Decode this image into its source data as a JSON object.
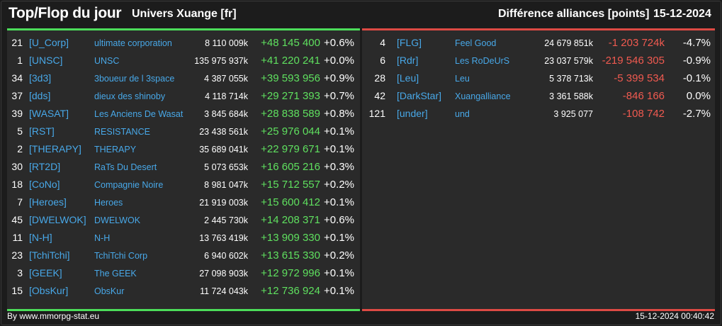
{
  "header": {
    "title": "Top/Flop du jour",
    "universe": "Univers Xuange [fr]",
    "subtitle": "Différence alliances [points]",
    "date": "15-12-2024"
  },
  "top": [
    {
      "rank": "21",
      "tag": "[U_Corp]",
      "name": "ultimate corporation",
      "points": "8 110 009k",
      "delta": "+48 145 400",
      "pct": "+0.6%"
    },
    {
      "rank": "1",
      "tag": "[UNSC]",
      "name": "UNSC",
      "points": "135 975 937k",
      "delta": "+41 220 241",
      "pct": "+0.0%"
    },
    {
      "rank": "34",
      "tag": "[3d3]",
      "name": "3boueur de l 3space",
      "points": "4 387 055k",
      "delta": "+39 593 956",
      "pct": "+0.9%"
    },
    {
      "rank": "37",
      "tag": "[dds]",
      "name": "dieux des shinoby",
      "points": "4 118 714k",
      "delta": "+29 271 393",
      "pct": "+0.7%"
    },
    {
      "rank": "39",
      "tag": "[WASAT]",
      "name": "Les Anciens De Wasat",
      "points": "3 845 684k",
      "delta": "+28 838 589",
      "pct": "+0.8%"
    },
    {
      "rank": "5",
      "tag": "[RST]",
      "name": "RESISTANCE",
      "points": "23 438 561k",
      "delta": "+25 976 044",
      "pct": "+0.1%"
    },
    {
      "rank": "2",
      "tag": "[THERAPY]",
      "name": "THERAPY",
      "points": "35 689 041k",
      "delta": "+22 979 671",
      "pct": "+0.1%"
    },
    {
      "rank": "30",
      "tag": "[RT2D]",
      "name": "RaTs Du Desert",
      "points": "5 073 653k",
      "delta": "+16 605 216",
      "pct": "+0.3%"
    },
    {
      "rank": "18",
      "tag": "[CoNo]",
      "name": "Compagnie Noire",
      "points": "8 981 047k",
      "delta": "+15 712 557",
      "pct": "+0.2%"
    },
    {
      "rank": "7",
      "tag": "[Heroes]",
      "name": "Heroes",
      "points": "21 919 003k",
      "delta": "+15 600 412",
      "pct": "+0.1%"
    },
    {
      "rank": "45",
      "tag": "[DWELWOK]",
      "name": "DWELWOK",
      "points": "2 445 730k",
      "delta": "+14 208 371",
      "pct": "+0.6%"
    },
    {
      "rank": "11",
      "tag": "[N-H]",
      "name": "N-H",
      "points": "13 763 419k",
      "delta": "+13 909 330",
      "pct": "+0.1%"
    },
    {
      "rank": "23",
      "tag": "[TchiTchi]",
      "name": "TchiTchi Corp",
      "points": "6 940 602k",
      "delta": "+13 615 330",
      "pct": "+0.2%"
    },
    {
      "rank": "3",
      "tag": "[GEEK]",
      "name": "The GEEK",
      "points": "27 098 903k",
      "delta": "+12 972 996",
      "pct": "+0.1%"
    },
    {
      "rank": "15",
      "tag": "[ObsKur]",
      "name": "ObsKur",
      "points": "11 724 043k",
      "delta": "+12 736 924",
      "pct": "+0.1%"
    }
  ],
  "flop": [
    {
      "rank": "4",
      "tag": "[FLG]",
      "name": "Feel Good",
      "points": "24 679 851k",
      "delta": "-1 203 724k",
      "pct": "-4.7%"
    },
    {
      "rank": "6",
      "tag": "[Rdr]",
      "name": "Les RoDeUrS",
      "points": "23 037 579k",
      "delta": "-219 546 305",
      "pct": "-0.9%"
    },
    {
      "rank": "28",
      "tag": "[Leu]",
      "name": "Leu",
      "points": "5 378 713k",
      "delta": "-5 399 534",
      "pct": "-0.1%"
    },
    {
      "rank": "42",
      "tag": "[DarkStar]",
      "name": "Xuangalliance",
      "points": "3 361 588k",
      "delta": "-846 166",
      "pct": "0.0%"
    },
    {
      "rank": "121",
      "tag": "[under]",
      "name": "und",
      "points": "3 925 077",
      "delta": "-108 742",
      "pct": "-2.7%"
    }
  ],
  "footer": {
    "credit": "By www.mmorpg-stat.eu",
    "timestamp": "15-12-2024 00:40:42"
  },
  "colors": {
    "gain": "#5fe05f",
    "loss": "#f05a50",
    "link": "#48a8e8"
  }
}
